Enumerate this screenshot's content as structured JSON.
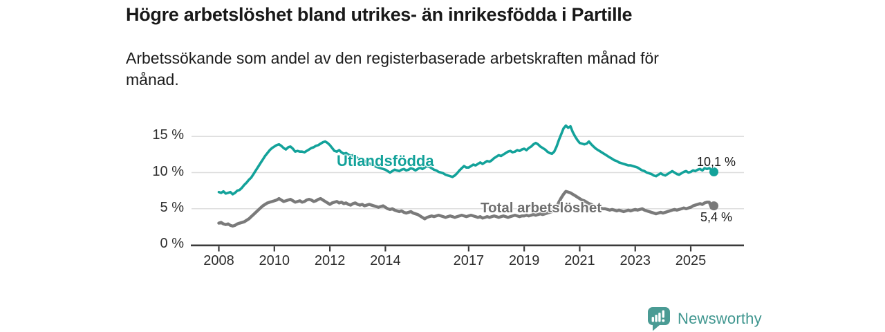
{
  "chart_data": {
    "type": "line",
    "title": "Högre arbetslöshet bland utrikes- än inrikesfödda i Partille",
    "subtitle_line1": "Arbetssökande som andel av den registerbaserade arbetskraften månad för",
    "subtitle_line2": "månad.",
    "x_unit": "month",
    "x_range": [
      "2008-01",
      "2025-11"
    ],
    "ylim": [
      0,
      17
    ],
    "grid": true,
    "yticks": [
      {
        "label": "0 %",
        "value": 0
      },
      {
        "label": "5 %",
        "value": 5
      },
      {
        "label": "10 %",
        "value": 10
      },
      {
        "label": "15 %",
        "value": 15
      }
    ],
    "xticks": [
      "2008",
      "2010",
      "2012",
      "2014",
      "2017",
      "2019",
      "2021",
      "2023",
      "2025"
    ],
    "series": [
      {
        "name": "Utlandsfödda",
        "color": "#13A29A",
        "end_label": "10,1 %",
        "end_value": 10.1,
        "values": [
          7.3,
          7.2,
          7.4,
          7.1,
          7.2,
          7.3,
          7.0,
          7.2,
          7.5,
          7.6,
          7.9,
          8.3,
          8.6,
          9.0,
          9.3,
          9.8,
          10.3,
          10.8,
          11.3,
          11.8,
          12.3,
          12.7,
          13.1,
          13.4,
          13.6,
          13.8,
          13.9,
          13.7,
          13.4,
          13.2,
          13.5,
          13.6,
          13.3,
          12.9,
          13.0,
          12.9,
          12.9,
          12.8,
          13.0,
          13.2,
          13.4,
          13.5,
          13.7,
          13.8,
          14.0,
          14.2,
          14.3,
          14.1,
          13.8,
          13.4,
          13.0,
          12.9,
          13.1,
          12.8,
          12.6,
          12.7,
          12.5,
          12.3,
          12.4,
          12.2,
          12.0,
          11.9,
          11.7,
          11.6,
          11.4,
          11.3,
          11.1,
          11.0,
          10.8,
          10.7,
          10.6,
          10.5,
          10.4,
          10.2,
          10.0,
          10.2,
          10.4,
          10.3,
          10.2,
          10.4,
          10.5,
          10.3,
          10.4,
          10.6,
          10.5,
          10.3,
          10.5,
          10.7,
          10.5,
          10.7,
          10.9,
          10.8,
          10.6,
          10.4,
          10.3,
          10.1,
          10.0,
          9.9,
          9.7,
          9.6,
          9.5,
          9.4,
          9.6,
          9.9,
          10.3,
          10.6,
          10.9,
          10.7,
          10.7,
          10.9,
          11.1,
          11.0,
          11.2,
          11.4,
          11.2,
          11.4,
          11.6,
          11.5,
          11.7,
          12.0,
          12.2,
          12.4,
          12.3,
          12.5,
          12.7,
          12.9,
          13.0,
          12.8,
          12.9,
          13.1,
          13.0,
          13.2,
          13.3,
          13.1,
          13.4,
          13.6,
          13.9,
          14.1,
          13.9,
          13.6,
          13.4,
          13.2,
          12.9,
          12.7,
          12.6,
          12.9,
          13.6,
          14.5,
          15.3,
          16.1,
          16.5,
          16.2,
          16.4,
          15.6,
          15.0,
          14.5,
          14.1,
          14.0,
          13.9,
          14.0,
          14.3,
          13.9,
          13.6,
          13.3,
          13.1,
          12.9,
          12.7,
          12.5,
          12.3,
          12.1,
          11.9,
          11.7,
          11.6,
          11.4,
          11.3,
          11.2,
          11.1,
          11.0,
          11.0,
          10.9,
          10.8,
          10.7,
          10.5,
          10.3,
          10.2,
          10.0,
          9.9,
          9.8,
          9.6,
          9.5,
          9.7,
          9.9,
          9.7,
          9.6,
          9.8,
          10.0,
          10.2,
          10.0,
          9.8,
          9.7,
          9.9,
          10.1,
          10.2,
          10.0,
          10.1,
          10.3,
          10.2,
          10.4,
          10.5,
          10.3,
          10.6,
          10.5,
          10.6,
          10.4,
          10.1
        ]
      },
      {
        "name": "Total arbetslöshet",
        "color": "#7A7A7A",
        "end_label": "5,4 %",
        "end_value": 5.4,
        "values": [
          3.0,
          3.1,
          2.9,
          2.8,
          2.9,
          2.7,
          2.6,
          2.7,
          2.9,
          3.0,
          3.1,
          3.2,
          3.4,
          3.6,
          3.9,
          4.2,
          4.5,
          4.8,
          5.1,
          5.4,
          5.6,
          5.8,
          5.9,
          6.0,
          6.1,
          6.2,
          6.4,
          6.2,
          6.0,
          6.1,
          6.2,
          6.3,
          6.1,
          5.9,
          6.0,
          6.1,
          5.9,
          6.0,
          6.2,
          6.3,
          6.2,
          6.0,
          6.1,
          6.3,
          6.4,
          6.2,
          6.0,
          5.8,
          5.6,
          5.8,
          5.9,
          6.0,
          5.8,
          5.9,
          5.7,
          5.8,
          5.6,
          5.5,
          5.7,
          5.8,
          5.6,
          5.5,
          5.6,
          5.4,
          5.5,
          5.6,
          5.5,
          5.4,
          5.3,
          5.2,
          5.3,
          5.4,
          5.2,
          5.0,
          4.9,
          5.0,
          4.8,
          4.7,
          4.6,
          4.7,
          4.5,
          4.4,
          4.5,
          4.6,
          4.4,
          4.3,
          4.2,
          4.0,
          3.8,
          3.6,
          3.8,
          3.9,
          4.0,
          3.9,
          4.0,
          4.1,
          4.0,
          3.9,
          3.8,
          3.9,
          4.0,
          3.9,
          3.8,
          3.9,
          4.0,
          4.1,
          4.0,
          3.9,
          4.0,
          4.1,
          4.0,
          3.9,
          3.8,
          3.9,
          3.7,
          3.8,
          3.9,
          3.8,
          3.9,
          4.0,
          3.9,
          3.8,
          3.9,
          4.0,
          3.9,
          3.8,
          3.9,
          4.0,
          4.1,
          4.0,
          3.9,
          4.0,
          4.0,
          4.1,
          4.0,
          4.1,
          4.2,
          4.1,
          4.2,
          4.3,
          4.2,
          4.3,
          4.4,
          4.5,
          4.6,
          4.8,
          5.2,
          5.9,
          6.5,
          7.0,
          7.4,
          7.3,
          7.2,
          7.0,
          6.8,
          6.6,
          6.4,
          6.2,
          6.1,
          5.9,
          5.7,
          5.6,
          5.4,
          5.3,
          5.2,
          5.1,
          5.0,
          5.0,
          4.9,
          4.8,
          4.9,
          4.8,
          4.7,
          4.8,
          4.7,
          4.6,
          4.7,
          4.8,
          4.7,
          4.8,
          4.9,
          4.8,
          4.9,
          5.0,
          4.8,
          4.7,
          4.6,
          4.5,
          4.4,
          4.3,
          4.4,
          4.5,
          4.4,
          4.5,
          4.6,
          4.7,
          4.8,
          4.9,
          4.8,
          4.9,
          5.0,
          5.1,
          5.0,
          5.1,
          5.2,
          5.4,
          5.5,
          5.6,
          5.7,
          5.6,
          5.8,
          5.9,
          5.9,
          5.1,
          5.4
        ]
      }
    ]
  },
  "colors": {
    "accent_teal": "#13A29A",
    "series_gray": "#7A7A7A",
    "logo_teal": "#4A9B94",
    "grid": "#DEDEDE",
    "axis": "#3A3A3A"
  },
  "footer": {
    "brand": "Newsworthy"
  }
}
